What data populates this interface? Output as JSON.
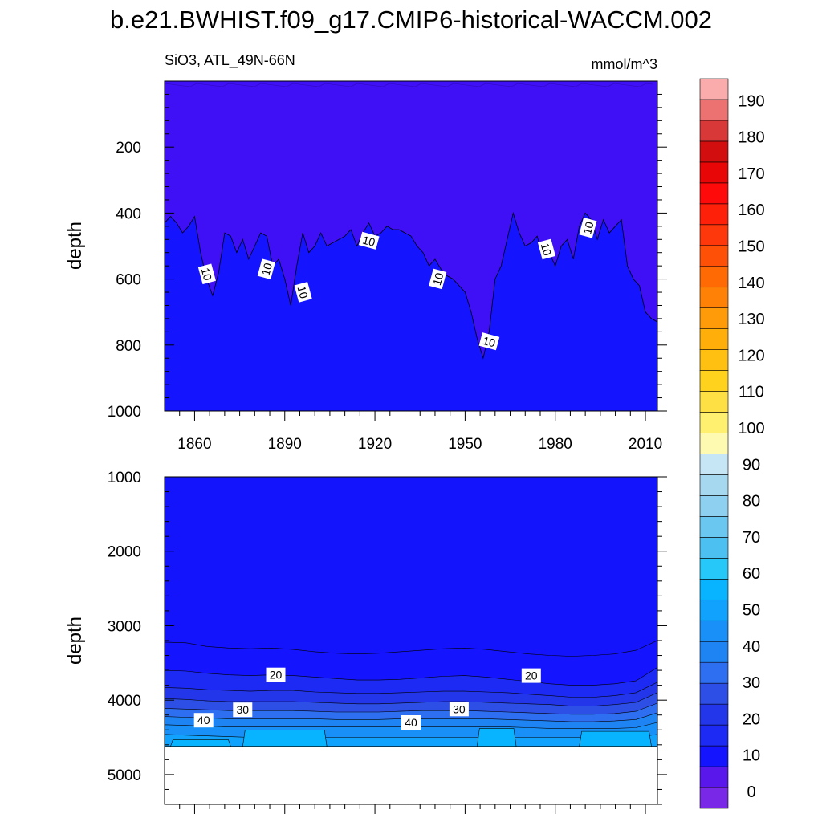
{
  "figure": {
    "title": "b.e21.BWHIST.f09_g17.CMIP6-historical-WACCM.002",
    "subtitle_left": "SiO3, ATL_49N-66N",
    "subtitle_right": "mmol/m^3"
  },
  "chart_data": [
    {
      "type": "heatmap",
      "panel": "upper",
      "ylabel": "depth",
      "xlabel": "",
      "xlim": [
        1850,
        2014
      ],
      "ylim": [
        1000,
        0
      ],
      "x_ticks": [
        "1860",
        "1890",
        "1920",
        "1950",
        "1980",
        "2010"
      ],
      "y_ticks": [
        "200",
        "400",
        "600",
        "800",
        "1000"
      ],
      "levels": [
        {
          "range": "0-10",
          "color": "#3f10f5"
        },
        {
          "range": "10-20",
          "color": "#1414ff"
        }
      ],
      "contour_10_depth": {
        "years": [
          1850,
          1852,
          1854,
          1856,
          1858,
          1860,
          1862,
          1864,
          1866,
          1868,
          1870,
          1872,
          1874,
          1876,
          1878,
          1880,
          1882,
          1884,
          1886,
          1888,
          1890,
          1892,
          1894,
          1896,
          1898,
          1900,
          1902,
          1904,
          1906,
          1908,
          1910,
          1912,
          1914,
          1916,
          1918,
          1920,
          1922,
          1924,
          1926,
          1928,
          1930,
          1932,
          1934,
          1936,
          1938,
          1940,
          1942,
          1944,
          1946,
          1948,
          1950,
          1952,
          1954,
          1956,
          1958,
          1960,
          1962,
          1964,
          1966,
          1968,
          1970,
          1972,
          1974,
          1976,
          1978,
          1980,
          1982,
          1984,
          1986,
          1988,
          1990,
          1992,
          1994,
          1996,
          1998,
          2000,
          2002,
          2004,
          2006,
          2008,
          2010,
          2012,
          2014
        ],
        "depths": [
          430,
          410,
          430,
          460,
          440,
          410,
          520,
          600,
          650,
          580,
          460,
          470,
          520,
          480,
          540,
          500,
          460,
          470,
          560,
          540,
          600,
          680,
          560,
          460,
          520,
          500,
          460,
          500,
          490,
          480,
          470,
          450,
          500,
          460,
          430,
          470,
          460,
          440,
          450,
          450,
          460,
          470,
          500,
          520,
          560,
          540,
          570,
          590,
          600,
          620,
          640,
          700,
          780,
          840,
          760,
          600,
          560,
          480,
          400,
          460,
          500,
          490,
          470,
          540,
          520,
          560,
          500,
          480,
          540,
          440,
          400,
          420,
          480,
          420,
          460,
          440,
          420,
          560,
          600,
          620,
          700,
          720,
          730
        ]
      },
      "contour_labels": [
        {
          "text": "10",
          "year": 1864,
          "depth": 585
        },
        {
          "text": "10",
          "year": 1884,
          "depth": 570
        },
        {
          "text": "10",
          "year": 1896,
          "depth": 640
        },
        {
          "text": "10",
          "year": 1918,
          "depth": 485
        },
        {
          "text": "10",
          "year": 1941,
          "depth": 600
        },
        {
          "text": "10",
          "year": 1958,
          "depth": 790
        },
        {
          "text": "10",
          "year": 1977,
          "depth": 510
        },
        {
          "text": "10",
          "year": 1991,
          "depth": 445
        }
      ]
    },
    {
      "type": "heatmap",
      "panel": "lower",
      "ylabel": "depth",
      "xlabel": "",
      "xlim": [
        1850,
        2014
      ],
      "ylim": [
        5400,
        1000
      ],
      "y_ticks": [
        "1000",
        "2000",
        "3000",
        "4000",
        "5000"
      ],
      "bottom_depth": 4620,
      "levels": [
        {
          "range": "10-15",
          "color": "#1414ff",
          "top_depth": [
            3220,
            3230,
            3280,
            3300,
            3310,
            3300,
            3320,
            3350,
            3370,
            3380,
            3370,
            3350,
            3330,
            3310,
            3300,
            3320,
            3350,
            3380,
            3400,
            3410,
            3400,
            3380,
            3330,
            3200
          ]
        },
        {
          "range": "15-20",
          "color": "#1c2af4",
          "top_depth": [
            3600,
            3610,
            3640,
            3660,
            3670,
            3660,
            3670,
            3690,
            3710,
            3730,
            3730,
            3720,
            3700,
            3680,
            3670,
            3690,
            3720,
            3750,
            3780,
            3800,
            3800,
            3780,
            3740,
            3560
          ]
        },
        {
          "range": "20-25",
          "color": "#2336ea",
          "top_depth": [
            3830,
            3840,
            3860,
            3870,
            3880,
            3870,
            3870,
            3890,
            3900,
            3910,
            3910,
            3900,
            3890,
            3880,
            3880,
            3890,
            3900,
            3920,
            3940,
            3960,
            3960,
            3940,
            3900,
            3760
          ]
        },
        {
          "range": "25-30",
          "color": "#2d4fe6",
          "top_depth": [
            3980,
            3990,
            4010,
            4020,
            4020,
            4020,
            4020,
            4030,
            4040,
            4050,
            4050,
            4040,
            4030,
            4020,
            4020,
            4030,
            4040,
            4050,
            4060,
            4080,
            4080,
            4060,
            4030,
            3900
          ]
        },
        {
          "range": "30-35",
          "color": "#2e6ef0",
          "top_depth": [
            4110,
            4120,
            4130,
            4140,
            4140,
            4140,
            4140,
            4150,
            4160,
            4160,
            4160,
            4150,
            4140,
            4140,
            4140,
            4150,
            4160,
            4170,
            4180,
            4190,
            4190,
            4180,
            4150,
            4040
          ]
        },
        {
          "range": "35-40",
          "color": "#1e84f4",
          "top_depth": [
            4220,
            4230,
            4240,
            4250,
            4250,
            4250,
            4250,
            4250,
            4260,
            4260,
            4260,
            4250,
            4250,
            4250,
            4250,
            4250,
            4260,
            4270,
            4280,
            4290,
            4290,
            4280,
            4260,
            4170
          ]
        },
        {
          "range": "40-45",
          "color": "#1890f8",
          "top_depth": [
            4330,
            4340,
            4350,
            4360,
            4360,
            4360,
            4360,
            4360,
            4360,
            4360,
            4360,
            4360,
            4360,
            4360,
            4360,
            4360,
            4360,
            4370,
            4380,
            4380,
            4380,
            4380,
            4370,
            4300
          ]
        },
        {
          "range": "45-50",
          "color": "#10a2fc",
          "top_depth": [
            4460,
            4470,
            4480,
            4490,
            4500,
            4500,
            4500,
            4500,
            4500,
            4500,
            4500,
            4500,
            4500,
            4500,
            4500,
            4500,
            4500,
            4500,
            4500,
            4500,
            4500,
            4500,
            4500,
            4460
          ]
        }
      ],
      "light_patches": [
        {
          "range": "50-55",
          "years": [
            1852,
            1872
          ],
          "depth": [
            4530,
            4620
          ]
        },
        {
          "range": "50-55",
          "years": [
            1876,
            1904
          ],
          "depth": [
            4400,
            4620
          ]
        },
        {
          "range": "50-55",
          "years": [
            1954,
            1967
          ],
          "depth": [
            4380,
            4620
          ]
        },
        {
          "range": "50-55",
          "years": [
            1988,
            2012
          ],
          "depth": [
            4420,
            4620
          ]
        }
      ],
      "contour_labels": [
        {
          "text": "20",
          "year": 1887,
          "depth": 3660
        },
        {
          "text": "20",
          "year": 1972,
          "depth": 3670
        },
        {
          "text": "30",
          "year": 1876,
          "depth": 4130
        },
        {
          "text": "30",
          "year": 1948,
          "depth": 4120
        },
        {
          "text": "40",
          "year": 1863,
          "depth": 4270
        },
        {
          "text": "40",
          "year": 1932,
          "depth": 4300
        }
      ]
    },
    {
      "type": "colorbar",
      "tick_labels": [
        "0",
        "10",
        "20",
        "30",
        "40",
        "50",
        "60",
        "70",
        "80",
        "90",
        "100",
        "110",
        "120",
        "130",
        "140",
        "150",
        "160",
        "170",
        "180",
        "190"
      ],
      "colors": [
        "#7a28e8",
        "#5a17ec",
        "#1414ff",
        "#1c2af4",
        "#2336ea",
        "#2d4fe6",
        "#2e6ef0",
        "#1e84f4",
        "#1890f8",
        "#10a2fc",
        "#08b4ff",
        "#26c8fa",
        "#4cc0f0",
        "#6ac8f0",
        "#8ed0f0",
        "#a6d8f0",
        "#c6e6f6",
        "#fffab2",
        "#fff070",
        "#ffe044",
        "#ffd21e",
        "#ffc012",
        "#ffae0a",
        "#ff9a08",
        "#ff8206",
        "#ff6a04",
        "#ff5008",
        "#ff380c",
        "#ff200a",
        "#ff0a0a",
        "#e80606",
        "#d20e0e",
        "#d83838",
        "#ec7272",
        "#faacac"
      ]
    }
  ]
}
